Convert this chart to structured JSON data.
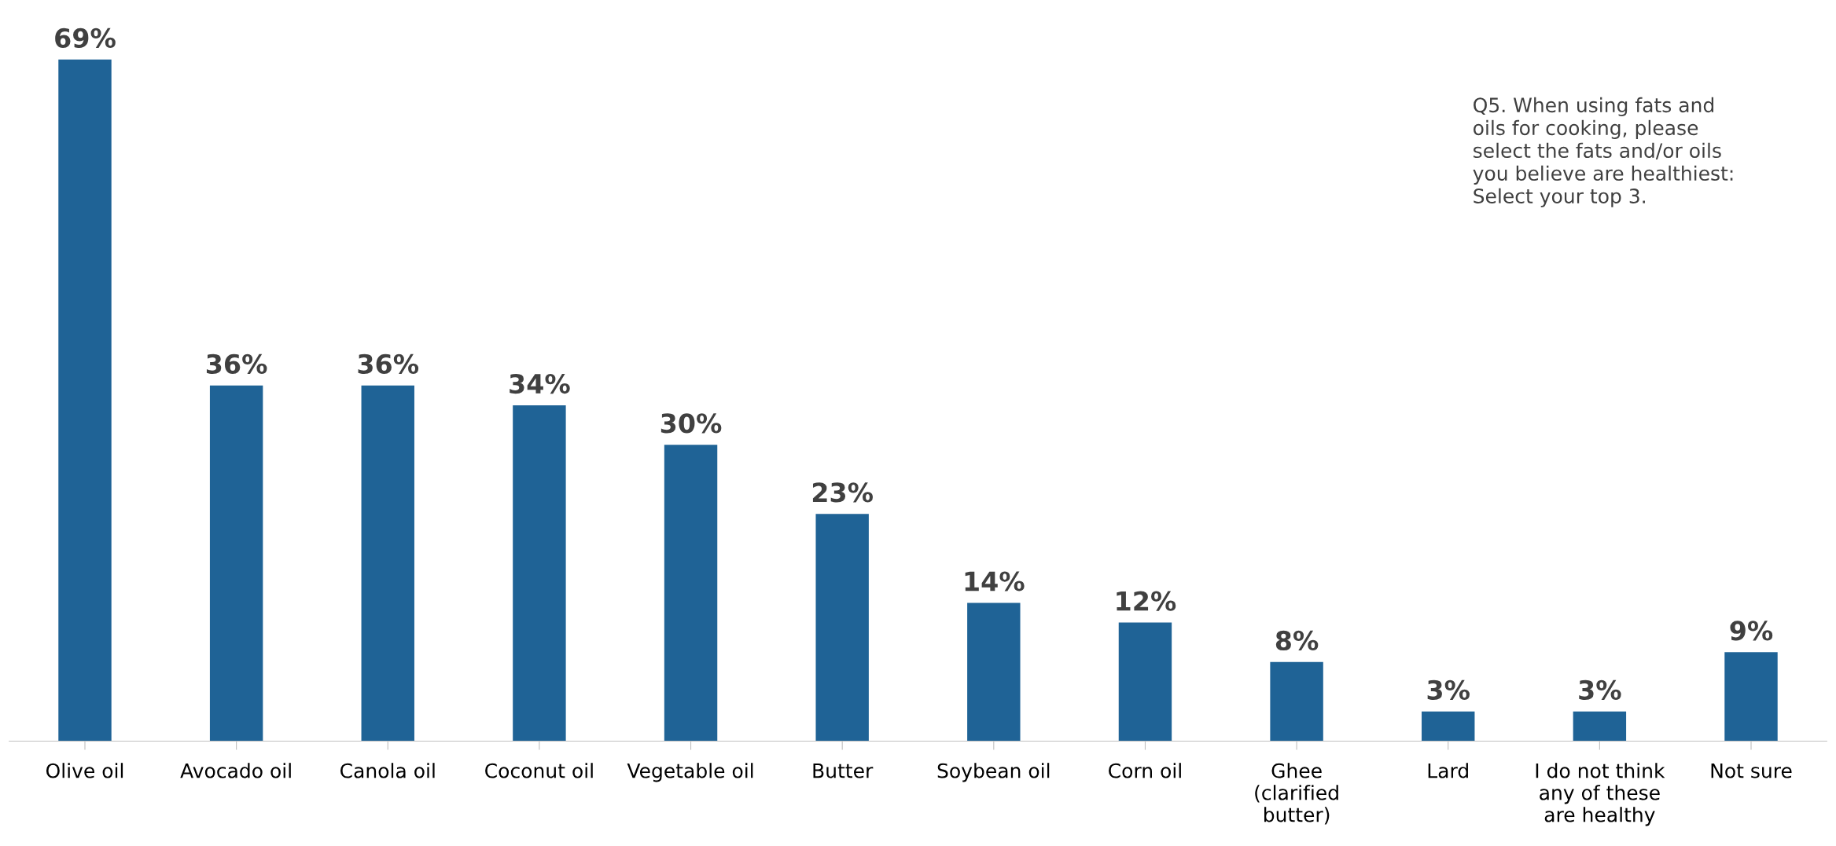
{
  "chart_data": {
    "type": "bar",
    "categories": [
      "Olive oil",
      "Avocado oil",
      "Canola oil",
      "Coconut oil",
      "Vegetable oil",
      "Butter",
      "Soybean oil",
      "Corn oil",
      "Ghee (clarified butter)",
      "Lard",
      "I do not think any of these are healthy",
      "Not sure"
    ],
    "values": [
      69,
      36,
      36,
      34,
      30,
      23,
      14,
      12,
      8,
      3,
      3,
      9
    ],
    "value_labels": [
      "69%",
      "36%",
      "36%",
      "34%",
      "30%",
      "23%",
      "14%",
      "12%",
      "8%",
      "3%",
      "3%",
      "9%"
    ],
    "color": "#1f6396",
    "annotations": [
      "Q5. When using fats and oils for cooking, please select the fats and/or oils you believe are healthiest: Select your top 3."
    ],
    "grid": false,
    "legend": false
  }
}
